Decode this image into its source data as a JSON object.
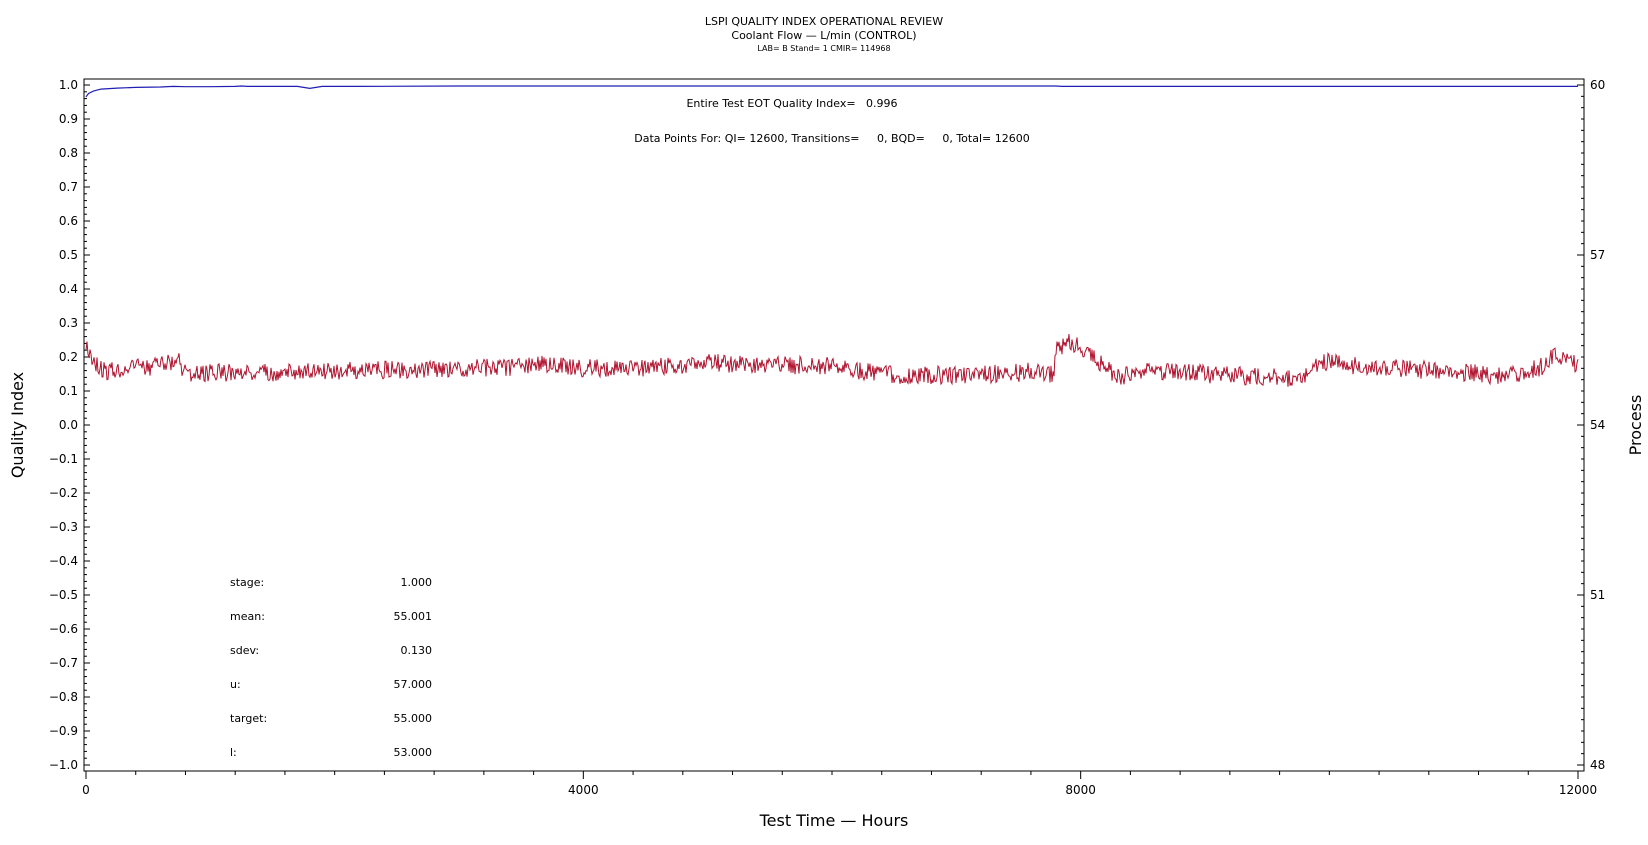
{
  "header": {
    "title": "LSPI QUALITY INDEX OPERATIONAL REVIEW",
    "subtitle": "Coolant Flow — L/min (CONTROL)",
    "meta": "LAB= B Stand= 1 CMIR= 114968"
  },
  "annotations": {
    "quality_index": "Entire Test EOT Quality Index=   0.996",
    "data_points": "Data Points For: QI= 12600, Transitions=     0, BQD=     0, Total= 12600"
  },
  "stats": [
    {
      "label": "stage:",
      "value": "1.000"
    },
    {
      "label": "mean:",
      "value": "55.001"
    },
    {
      "label": "sdev:",
      "value": "0.130"
    },
    {
      "label": "u:",
      "value": "57.000"
    },
    {
      "label": "target:",
      "value": "55.000"
    },
    {
      "label": "l:",
      "value": "53.000"
    }
  ],
  "chart_data": {
    "type": "line",
    "xlabel": "Test Time — Hours",
    "ylabel": "Quality Index",
    "y2label": "Process",
    "xlim": [
      0,
      12000
    ],
    "ylim": [
      -1.0,
      1.0
    ],
    "y2lim": [
      48,
      60
    ],
    "x_ticks": [
      "0",
      "4000",
      "8000",
      "12000"
    ],
    "y_ticks": [
      "1.0",
      "0.9",
      "0.8",
      "0.7",
      "0.6",
      "0.5",
      "0.4",
      "0.3",
      "0.2",
      "0.1",
      "0.0",
      "−0.1",
      "−0.2",
      "−0.3",
      "−0.4",
      "−0.5",
      "−0.6",
      "−0.7",
      "−0.8",
      "−0.9",
      "−1.0"
    ],
    "y2_ticks": [
      "60",
      "57",
      "54",
      "51",
      "48"
    ],
    "series": [
      {
        "axis": "left",
        "color": "#1f1fb4",
        "x": [
          0,
          20,
          60,
          120,
          250,
          400,
          600,
          700,
          800,
          1000,
          1200,
          1250,
          1300,
          1500,
          1700,
          1750,
          1800,
          1850,
          1900,
          2200,
          3000,
          4000,
          5000,
          6000,
          7000,
          7800,
          7850,
          8000,
          9000,
          10000,
          11000,
          12000
        ],
        "values": [
          0.965,
          0.975,
          0.982,
          0.988,
          0.991,
          0.993,
          0.994,
          0.996,
          0.995,
          0.995,
          0.996,
          0.997,
          0.996,
          0.996,
          0.996,
          0.993,
          0.99,
          0.993,
          0.996,
          0.996,
          0.997,
          0.997,
          0.997,
          0.997,
          0.997,
          0.997,
          0.996,
          0.996,
          0.996,
          0.996,
          0.996,
          0.996
        ]
      },
      {
        "axis": "right",
        "color": "#b0122e",
        "x": [
          0,
          20,
          60,
          150,
          300,
          600,
          750,
          800,
          1000,
          1500,
          2000,
          2500,
          3000,
          3500,
          3700,
          4000,
          4500,
          5000,
          5500,
          6000,
          6200,
          6500,
          7000,
          7500,
          7600,
          7700,
          7780,
          7800,
          7900,
          8000,
          8100,
          8200,
          8300,
          8400,
          8500,
          8700,
          9000,
          9500,
          9700,
          9800,
          9900,
          10000,
          10200,
          10500,
          11000,
          11300,
          11500,
          11700,
          11800,
          12000
        ],
        "values": [
          55.45,
          55.3,
          55.15,
          54.95,
          54.98,
          55.05,
          55.12,
          54.9,
          54.92,
          54.93,
          54.95,
          54.97,
          55.0,
          55.02,
          55.08,
          55.0,
          55.0,
          55.1,
          55.05,
          55.05,
          54.95,
          54.88,
          54.88,
          54.92,
          54.95,
          54.9,
          54.9,
          55.3,
          55.45,
          55.4,
          55.2,
          55.0,
          54.85,
          54.88,
          54.95,
          54.95,
          54.9,
          54.85,
          54.82,
          54.88,
          55.05,
          55.15,
          55.05,
          55.0,
          54.95,
          54.88,
          54.88,
          55.02,
          55.25,
          55.05
        ]
      }
    ]
  }
}
